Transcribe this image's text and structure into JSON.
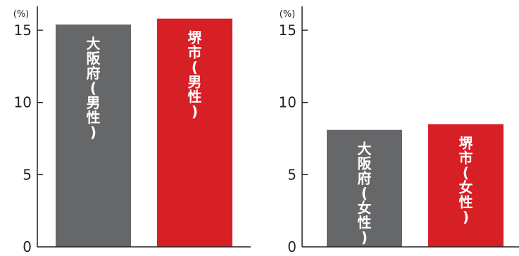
{
  "colors": {
    "axis": "#231f20",
    "osaka": "#666769",
    "sakai": "#d71f26",
    "bar_text": "#ffffff"
  },
  "chart_data": [
    {
      "type": "bar",
      "unit_label": "(%)",
      "ylim": [
        0,
        15
      ],
      "yticks": [
        "0",
        "5",
        "10",
        "15"
      ],
      "grid": false,
      "categories": [
        "大阪府(男性)",
        "堺市(男性)"
      ],
      "values": [
        15.4,
        15.8
      ],
      "bar_colors": [
        "#666769",
        "#d71f26"
      ]
    },
    {
      "type": "bar",
      "unit_label": "(%)",
      "ylim": [
        0,
        15
      ],
      "yticks": [
        "0",
        "5",
        "10",
        "15"
      ],
      "grid": false,
      "categories": [
        "大阪府(女性)",
        "堺市(女性)"
      ],
      "values": [
        8.1,
        8.5
      ],
      "bar_colors": [
        "#666769",
        "#d71f26"
      ]
    }
  ]
}
